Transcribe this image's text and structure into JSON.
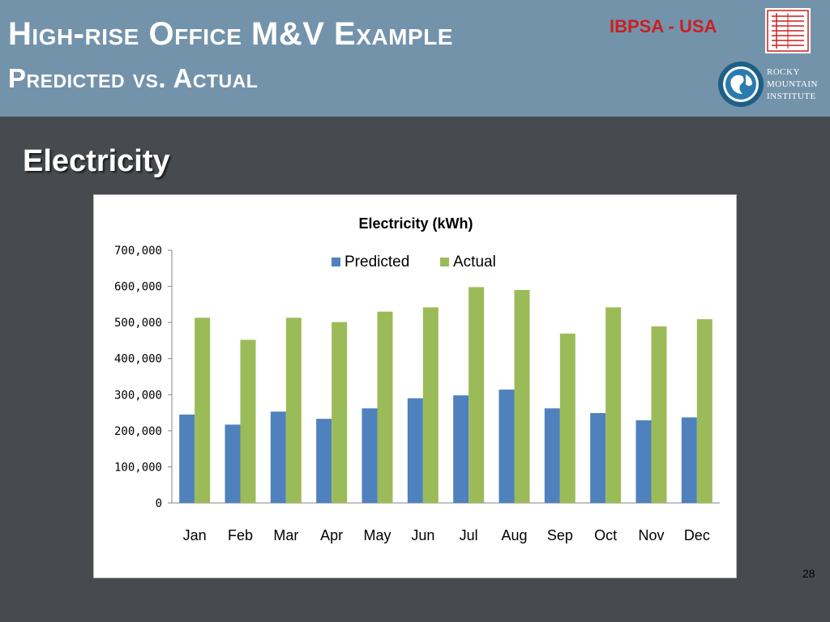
{
  "slide": {
    "title_line1": "High-rise Office M&V Example",
    "title_line2": "Predicted vs. Actual",
    "org_label": "IBPSA - USA",
    "rmi_logo_text": "ROCKY\nMOUNTAIN\nINSTITUTE",
    "section_heading": "Electricity",
    "slide_number": "28"
  },
  "colors": {
    "header_bg": "#7393ab",
    "slide_bg": "#474b4f",
    "predicted": "#4f81bd",
    "actual": "#9bbb59",
    "org_red": "#cc1f1f"
  },
  "chart_data": {
    "type": "bar",
    "title": "Electricity (kWh)",
    "categories": [
      "Jan",
      "Feb",
      "Mar",
      "Apr",
      "May",
      "Jun",
      "Jul",
      "Aug",
      "Sep",
      "Oct",
      "Nov",
      "Dec"
    ],
    "series": [
      {
        "name": "Predicted",
        "color": "#4f81bd",
        "values": [
          245000,
          217000,
          253000,
          233000,
          262000,
          290000,
          298000,
          314000,
          262000,
          249000,
          229000,
          237000
        ]
      },
      {
        "name": "Actual",
        "color": "#9bbb59",
        "values": [
          513000,
          452000,
          513000,
          501000,
          530000,
          542000,
          598000,
          590000,
          469000,
          542000,
          489000,
          509000
        ]
      }
    ],
    "yticks": [
      "0",
      "100,000",
      "200,000",
      "300,000",
      "400,000",
      "500,000",
      "600,000",
      "700,000"
    ],
    "ylim": [
      0,
      700000
    ],
    "xlabel": "",
    "ylabel": "",
    "grid": false,
    "legend_position": "top-center"
  }
}
